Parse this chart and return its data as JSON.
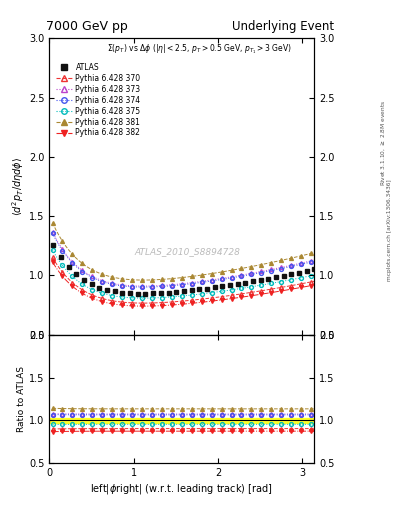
{
  "title_left": "7000 GeV pp",
  "title_right": "Underlying Event",
  "annotation": "ATLAS_2010_S8894728",
  "subtitle": "$\\Sigma(p_T)$ vs $\\Delta\\phi$ ($|\\eta| < 2.5$, $p_T > 0.5$ GeV, $p_{T_1} > 3$ GeV)",
  "ylabel_main": "$\\langle d^2 p_T / d\\eta d\\phi \\rangle$",
  "ylabel_ratio": "Ratio to ATLAS",
  "xlabel": "left|$\\phi$right| (w.r.t. leading track) [rad]",
  "right_label": "Rivet 3.1.10, $\\geq$ 2.8M events",
  "right_label2": "mcplots.cern.ch [arXiv:1306.3436]",
  "ylim_main": [
    0.5,
    3.0
  ],
  "ylim_ratio": [
    0.5,
    2.0
  ],
  "xlim": [
    0.0,
    3.14159
  ],
  "yticks_main": [
    0.5,
    1.0,
    1.5,
    2.0,
    2.5,
    3.0
  ],
  "yticks_ratio": [
    0.5,
    1.0,
    1.5,
    2.0
  ],
  "xticks": [
    0,
    1,
    2,
    3
  ],
  "series": [
    {
      "label": "ATLAS",
      "color": "#111111",
      "marker": "s",
      "linestyle": "none",
      "filled": true,
      "ratio": 1.0
    },
    {
      "label": "Pythia 6.428 370",
      "color": "#EE3333",
      "marker": "^",
      "linestyle": "--",
      "filled": false,
      "ratio": 0.905
    },
    {
      "label": "Pythia 6.428 373",
      "color": "#BB44CC",
      "marker": "^",
      "linestyle": ":",
      "filled": false,
      "ratio": 1.075
    },
    {
      "label": "Pythia 6.428 374",
      "color": "#4455EE",
      "marker": "o",
      "linestyle": ":",
      "filled": false,
      "ratio": 1.065
    },
    {
      "label": "Pythia 6.428 375",
      "color": "#00BBBB",
      "marker": "o",
      "linestyle": ":",
      "filled": false,
      "ratio": 0.955
    },
    {
      "label": "Pythia 6.428 381",
      "color": "#AA8833",
      "marker": "^",
      "linestyle": "--",
      "filled": true,
      "ratio": 1.135
    },
    {
      "label": "Pythia 6.428 382",
      "color": "#EE2222",
      "marker": "v",
      "linestyle": "-.",
      "filled": true,
      "ratio": 0.875
    }
  ]
}
